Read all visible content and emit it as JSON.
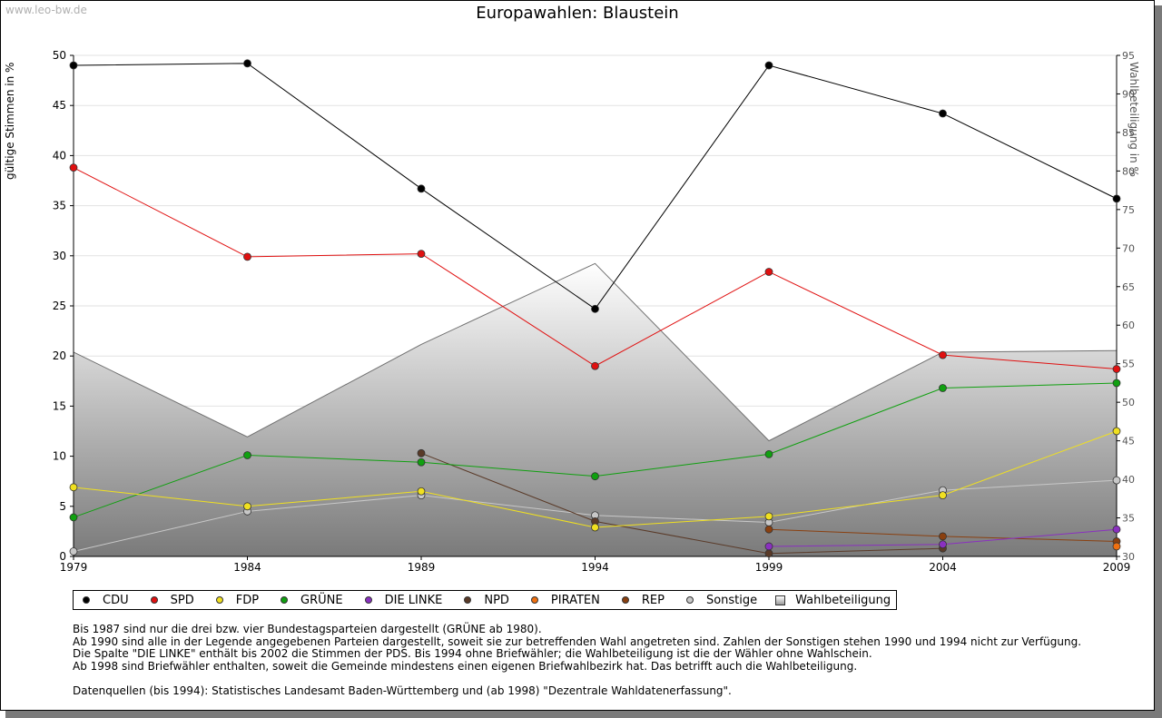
{
  "watermark": "www.leo-bw.de",
  "chart_data": {
    "type": "line",
    "title": "Europawahlen: Blaustein",
    "ylabel_left": "gültige Stimmen in %",
    "ylabel_right": "Wahlbeteiligung in %",
    "x": [
      1979,
      1984,
      1989,
      1994,
      1999,
      2004,
      2009
    ],
    "ylim_left": [
      0,
      50
    ],
    "yticks_left": [
      0,
      5,
      10,
      15,
      20,
      25,
      30,
      35,
      40,
      45,
      50
    ],
    "ylim_right": [
      30,
      95
    ],
    "yticks_right": [
      30,
      35,
      40,
      45,
      50,
      55,
      60,
      65,
      70,
      75,
      80,
      85,
      90,
      95
    ],
    "grid": true,
    "legend_position": "bottom",
    "series": [
      {
        "name": "CDU",
        "color": "#000000",
        "values": [
          49.0,
          49.2,
          36.7,
          24.7,
          49.0,
          44.2,
          35.7
        ]
      },
      {
        "name": "SPD",
        "color": "#e01010",
        "values": [
          38.8,
          29.9,
          30.2,
          19.0,
          28.4,
          20.1,
          18.7
        ]
      },
      {
        "name": "FDP",
        "color": "#f0e020",
        "values": [
          6.9,
          5.0,
          6.5,
          2.9,
          4.0,
          6.1,
          12.5
        ]
      },
      {
        "name": "GRÜNE",
        "color": "#10a010",
        "values": [
          3.9,
          10.1,
          9.4,
          8.0,
          10.2,
          16.8,
          17.3
        ]
      },
      {
        "name": "DIE LINKE",
        "color": "#8a30c0",
        "values": [
          null,
          null,
          null,
          null,
          1.0,
          1.2,
          2.7
        ]
      },
      {
        "name": "NPD",
        "color": "#5a3a28",
        "values": [
          null,
          null,
          10.3,
          3.5,
          0.3,
          0.8,
          null
        ]
      },
      {
        "name": "PIRATEN",
        "color": "#f07010",
        "values": [
          null,
          null,
          null,
          null,
          null,
          null,
          1.0
        ]
      },
      {
        "name": "REP",
        "color": "#8a4010",
        "values": [
          null,
          null,
          null,
          null,
          2.7,
          2.0,
          1.5
        ]
      },
      {
        "name": "Sonstige",
        "color": "#c8c8c8",
        "values": [
          0.5,
          4.5,
          6.1,
          4.1,
          3.4,
          6.6,
          7.6
        ]
      }
    ],
    "turnout": {
      "name": "Wahlbeteiligung",
      "values": [
        56.5,
        45.5,
        57.5,
        68.0,
        45.0,
        56.5,
        56.7
      ]
    }
  },
  "notes": [
    "Bis 1987 sind nur die drei bzw. vier Bundestagsparteien dargestellt (GRÜNE ab 1980).",
    "Ab 1990 sind alle in der Legende angegebenen Parteien dargestellt, soweit sie zur betreffenden Wahl angetreten sind. Zahlen der Sonstigen stehen 1990 und 1994 nicht zur Verfügung.",
    "Die Spalte \"DIE LINKE\" enthält bis 2002 die Stimmen der PDS. Bis 1994 ohne Briefwähler; die Wahlbeteiligung ist die der Wähler ohne Wahlschein.",
    "Ab 1998 sind Briefwähler enthalten, soweit die Gemeinde mindestens einen eigenen Briefwahlbezirk hat. Das betrifft auch die Wahlbeteiligung."
  ],
  "sources": "Datenquellen (bis 1994): Statistisches Landesamt Baden-Württemberg und (ab 1998) \"Dezentrale Wahldatenerfassung\"."
}
